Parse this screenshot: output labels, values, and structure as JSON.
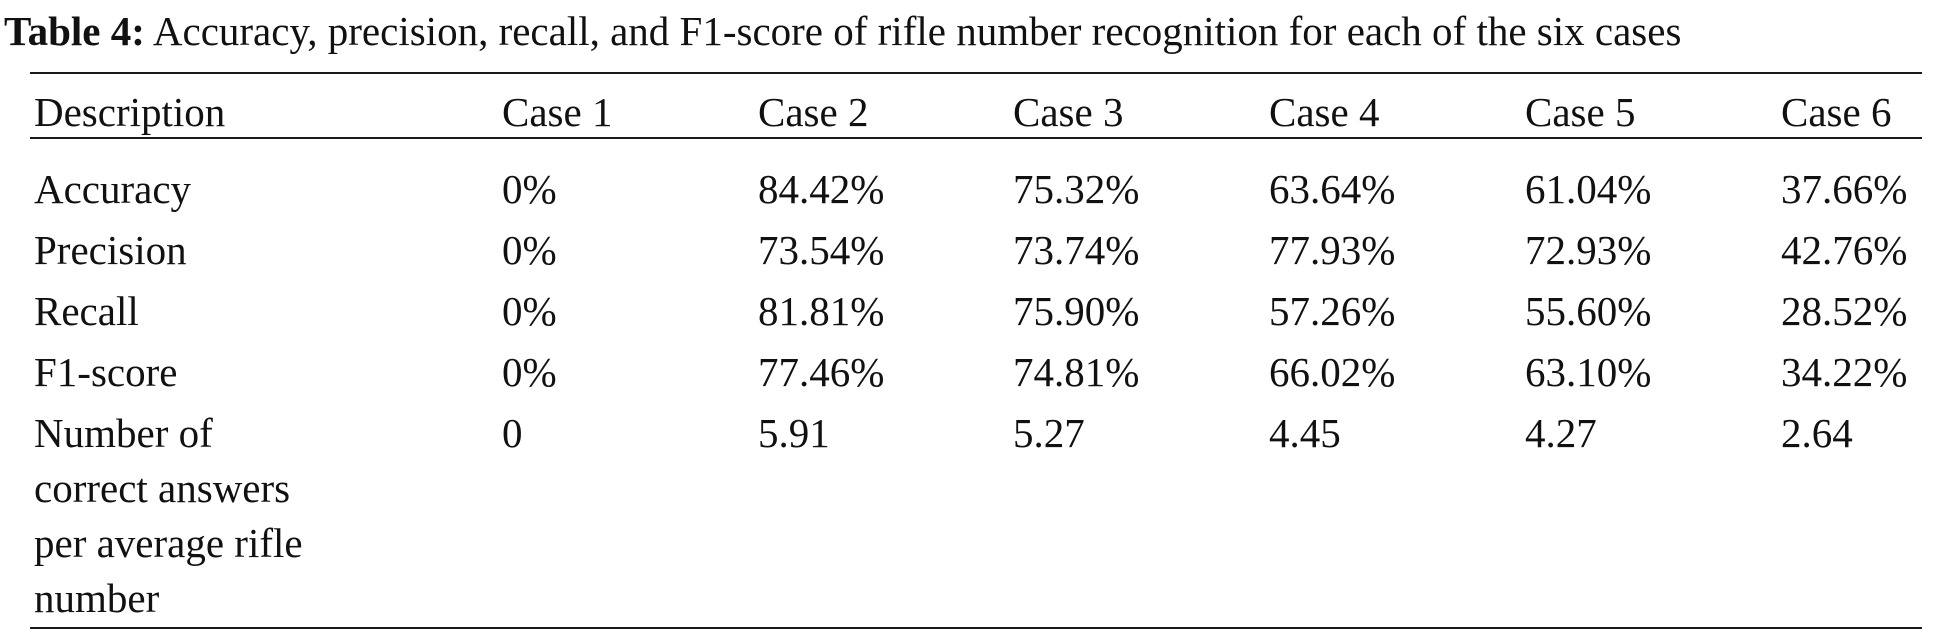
{
  "caption": {
    "label": "Table 4:",
    "text": "Accuracy, precision, recall, and F1-score of rifle number recognition for each of the six cases"
  },
  "table": {
    "headers": [
      "Description",
      "Case 1",
      "Case 2",
      "Case 3",
      "Case 4",
      "Case 5",
      "Case 6"
    ],
    "rows": [
      {
        "label": "Accuracy",
        "values": [
          "0%",
          "84.42%",
          "75.32%",
          "63.64%",
          "61.04%",
          "37.66%"
        ]
      },
      {
        "label": "Precision",
        "values": [
          "0%",
          "73.54%",
          "73.74%",
          "77.93%",
          "72.93%",
          "42.76%"
        ]
      },
      {
        "label": "Recall",
        "values": [
          "0%",
          "81.81%",
          "75.90%",
          "57.26%",
          "55.60%",
          "28.52%"
        ]
      },
      {
        "label": "F1-score",
        "values": [
          "0%",
          "77.46%",
          "74.81%",
          "66.02%",
          "63.10%",
          "34.22%"
        ]
      },
      {
        "label_lines": [
          "Number of",
          "correct answers",
          "per average rifle",
          "number"
        ],
        "values": [
          "0",
          "5.91",
          "5.27",
          "4.45",
          "4.27",
          "2.64"
        ]
      }
    ]
  }
}
